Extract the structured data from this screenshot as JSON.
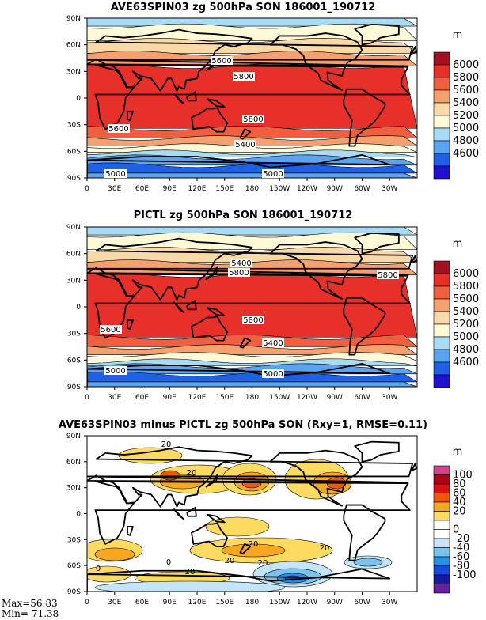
{
  "panels": [
    {
      "title": "AVE63SPIN03 zg 500hPa SON 186001_190712",
      "unit": "m",
      "legend": [
        "6000",
        "5800",
        "5600",
        "5400",
        "5200",
        "5000",
        "4800",
        "4600"
      ],
      "legend_colors": [
        "#a51020",
        "#e8302a",
        "#f06040",
        "#f4a070",
        "#fad9a8",
        "#fefad8",
        "#a8dcf4",
        "#5aa4f0",
        "#2060e8",
        "#2010d0"
      ],
      "contour_labels": [
        "5600",
        "5800",
        "5800",
        "5600",
        "5400",
        "5000",
        "5000"
      ]
    },
    {
      "title": "PICTL zg 500hPa SON 186001_190712",
      "unit": "m",
      "legend": [
        "6000",
        "5800",
        "5600",
        "5400",
        "5200",
        "5000",
        "4800",
        "4600"
      ],
      "legend_colors": [
        "#a51020",
        "#e8302a",
        "#f06040",
        "#f4a070",
        "#fad9a8",
        "#fefad8",
        "#a8dcf4",
        "#5aa4f0",
        "#2060e8",
        "#2010d0"
      ],
      "contour_labels": [
        "5400",
        "5800",
        "5800",
        "5800",
        "5600",
        "5400",
        "5000",
        "5000"
      ]
    },
    {
      "title": "AVE63SPIN03 minus PICTL zg 500hPa SON (Rxy=1, RMSE=0.11)",
      "unit": "m",
      "legend": [
        "100",
        "80",
        "60",
        "40",
        "20",
        "0",
        "-20",
        "-40",
        "-60",
        "-80",
        "-100"
      ],
      "legend_colors": [
        "#d8408a",
        "#b00018",
        "#e01010",
        "#f05808",
        "#f8a820",
        "#fdda60",
        "#ffffff",
        "#ffffff",
        "#c4e4f8",
        "#7cc4f0",
        "#2890e8",
        "#1848e0",
        "#1818a8",
        "#6820a8"
      ],
      "contour_labels": [
        "20",
        "20",
        "20",
        "20",
        "20",
        "0",
        "20",
        "0",
        "20"
      ]
    }
  ],
  "lat_ticks": [
    "90N",
    "60N",
    "30N",
    "0",
    "30S",
    "60S",
    "90S"
  ],
  "lon_ticks": [
    "0",
    "30E",
    "60E",
    "90E",
    "120E",
    "150E",
    "180",
    "150W",
    "120W",
    "90W",
    "60W",
    "30W"
  ],
  "stats": {
    "max": "Max=56.83",
    "min": "Min=-71.38"
  }
}
